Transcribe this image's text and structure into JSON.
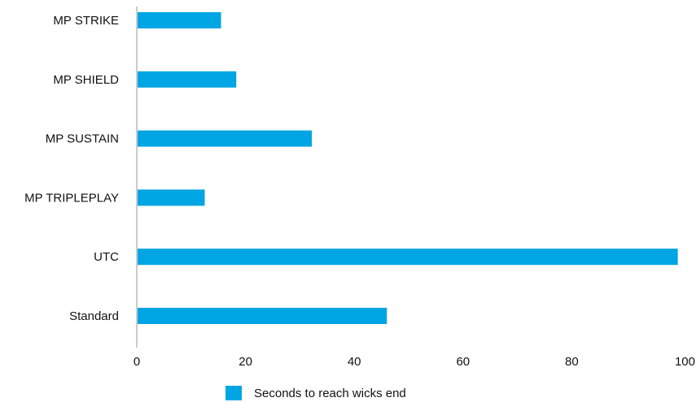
{
  "chart_data": {
    "type": "bar",
    "orientation": "horizontal",
    "categories": [
      "MP STRIKE",
      "MP SHIELD",
      "MP SUSTAIN",
      "MP TRIPLEPLAY",
      "UTC",
      "Standard"
    ],
    "series": [
      {
        "name": "Seconds to reach wicks end",
        "values": [
          15.5,
          18.3,
          32.2,
          12.5,
          99.5,
          46.0
        ],
        "color": "#00A5E3"
      }
    ],
    "xlim": [
      0,
      100
    ],
    "x_ticks": [
      "0",
      "20",
      "40",
      "60",
      "80",
      "100"
    ],
    "grid": false,
    "legend_position": "bottom",
    "title": "",
    "xlabel": "",
    "ylabel": ""
  }
}
